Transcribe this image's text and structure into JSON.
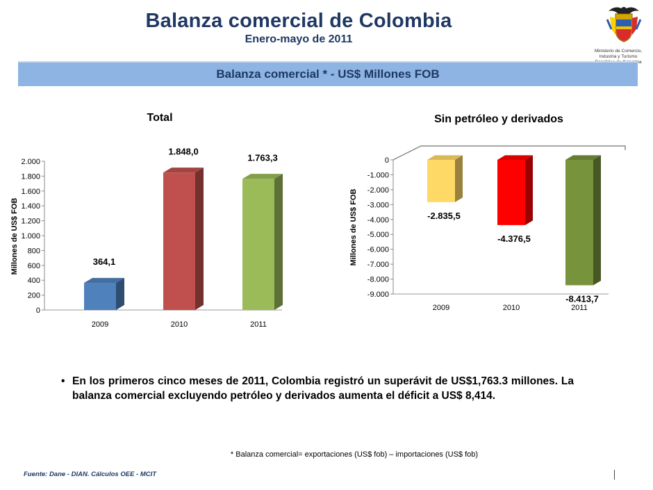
{
  "header": {
    "title": "Balanza comercial de Colombia",
    "subtitle": "Enero-mayo de 2011",
    "banner": "Balanza comercial * -  US$ Millones FOB"
  },
  "logo": {
    "icon": "colombia-coat-of-arms",
    "lines": [
      "Ministerio de Comercio,",
      "Industria y Turismo",
      "República de Colombia"
    ]
  },
  "chart_data": [
    {
      "type": "bar",
      "title": "Total",
      "ylabel": "Millones de US$ FOB",
      "categories": [
        "2009",
        "2010",
        "2011"
      ],
      "values": [
        364.1,
        1848.0,
        1763.3
      ],
      "data_labels": [
        "364,1",
        "1.848,0",
        "1.763,3"
      ],
      "ylim": [
        0,
        2000
      ],
      "yticks": [
        0,
        200,
        400,
        600,
        800,
        1000,
        1200,
        1400,
        1600,
        1800,
        2000
      ],
      "ytick_labels": [
        "0",
        "200",
        "400",
        "600",
        "800",
        "1.000",
        "1.200",
        "1.400",
        "1.600",
        "1.800",
        "2.000"
      ],
      "colors": [
        "#4f81bd",
        "#c0504d",
        "#9bbb59"
      ],
      "grid": false,
      "style": "3d"
    },
    {
      "type": "bar",
      "title": "Sin petróleo y derivados",
      "ylabel": "Millones de US$ FOB",
      "categories": [
        "2009",
        "2010",
        "2011"
      ],
      "values": [
        -2835.5,
        -4376.5,
        -8413.7
      ],
      "data_labels": [
        "-2.835,5",
        "-4.376,5",
        "-8.413,7"
      ],
      "ylim": [
        -9000,
        0
      ],
      "yticks": [
        0,
        -1000,
        -2000,
        -3000,
        -4000,
        -5000,
        -6000,
        -7000,
        -8000,
        -9000
      ],
      "ytick_labels": [
        "0",
        "-1.000",
        "-2.000",
        "-3.000",
        "-4.000",
        "-5.000",
        "-6.000",
        "-7.000",
        "-8.000",
        "-9.000"
      ],
      "colors": [
        "#ffd966",
        "#ff0000",
        "#77933c"
      ],
      "grid": false,
      "style": "3d"
    }
  ],
  "bullet": {
    "text": "En los primeros cinco meses de 2011, Colombia registró un superávit de US$1,763.3 millones. La balanza comercial excluyendo petróleo y derivados aumenta el déficit a US$ 8,414."
  },
  "footnote": "* Balanza comercial= exportaciones (US$ fob) – importaciones (US$ fob)",
  "source": "Fuente: Dane - DIAN. Cálculos OEE - MCIT"
}
